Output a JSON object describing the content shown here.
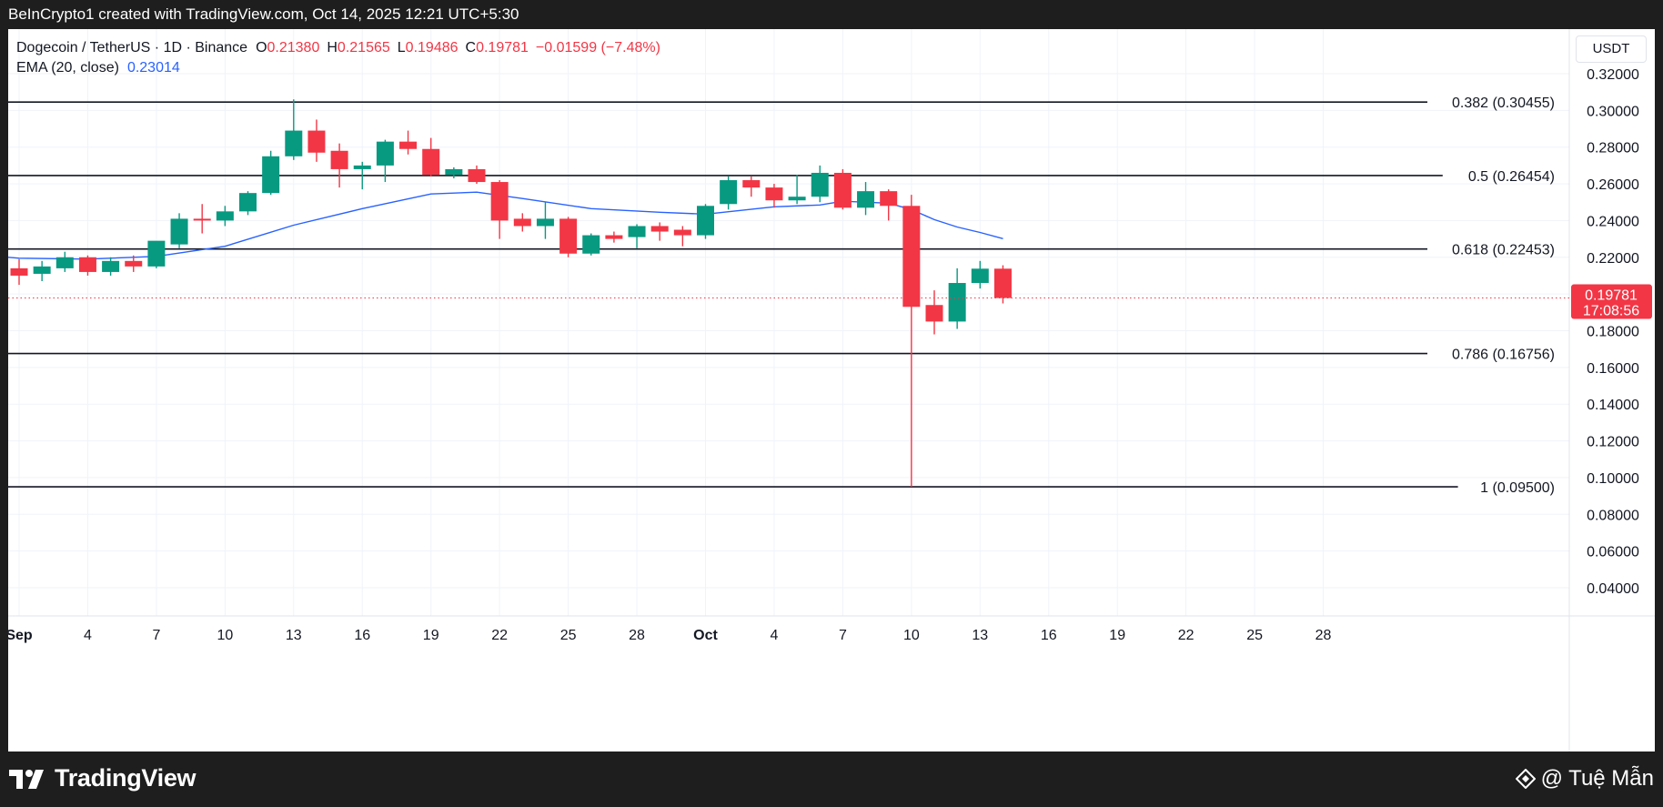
{
  "header": {
    "caption": "BeInCrypto1 created with TradingView.com, Oct 14, 2025 12:21 UTC+5:30"
  },
  "legend": {
    "symbol": "Dogecoin / TetherUS · 1D · Binance",
    "o_label": "O",
    "o_value": "0.21380",
    "h_label": "H",
    "h_value": "0.21565",
    "l_label": "L",
    "l_value": "0.19486",
    "c_label": "C",
    "c_value": "0.19781",
    "change": "−0.01599 (−7.48%)",
    "ema_label": "EMA (20, close)",
    "ema_value": "0.23014"
  },
  "currency_button": "USDT",
  "footer": {
    "brand": "TradingView",
    "credit": "@ Tuệ Mẫn"
  },
  "colors": {
    "up": "#089981",
    "down": "#f23645",
    "ema": "#2962ff",
    "fib_line": "#131722",
    "grid": "#f0f3fa"
  },
  "chart_data": {
    "type": "candlestick",
    "ylim": [
      0.02,
      0.335
    ],
    "y_ticks": [
      "0.32000",
      "0.30000",
      "0.28000",
      "0.26000",
      "0.24000",
      "0.22000",
      "0.18000",
      "0.16000",
      "0.14000",
      "0.12000",
      "0.10000",
      "0.08000",
      "0.06000",
      "0.04000"
    ],
    "x_ticks": [
      "Sep",
      "4",
      "7",
      "10",
      "13",
      "16",
      "19",
      "22",
      "25",
      "28",
      "Oct",
      "4",
      "7",
      "10",
      "13",
      "16",
      "19",
      "22",
      "25",
      "28"
    ],
    "last_price": {
      "value": 0.19781,
      "label": "0.19781",
      "countdown": "17:08:56"
    },
    "fib_levels": [
      {
        "label": "0.382 (0.30455)",
        "value": 0.30455
      },
      {
        "label": "0.5 (0.26454)",
        "value": 0.26454
      },
      {
        "label": "0.618 (0.22453)",
        "value": 0.22453
      },
      {
        "label": "0.786 (0.16756)",
        "value": 0.16756
      },
      {
        "label": "1 (0.09500)",
        "value": 0.095
      }
    ],
    "candles": [
      {
        "date": "Sep 1",
        "o": 0.214,
        "h": 0.219,
        "l": 0.205,
        "c": 0.21
      },
      {
        "date": "Sep 2",
        "o": 0.211,
        "h": 0.218,
        "l": 0.207,
        "c": 0.215
      },
      {
        "date": "Sep 3",
        "o": 0.214,
        "h": 0.223,
        "l": 0.212,
        "c": 0.22
      },
      {
        "date": "Sep 4",
        "o": 0.22,
        "h": 0.221,
        "l": 0.21,
        "c": 0.212
      },
      {
        "date": "Sep 5",
        "o": 0.212,
        "h": 0.22,
        "l": 0.21,
        "c": 0.218
      },
      {
        "date": "Sep 6",
        "o": 0.218,
        "h": 0.221,
        "l": 0.212,
        "c": 0.215
      },
      {
        "date": "Sep 7",
        "o": 0.215,
        "h": 0.228,
        "l": 0.214,
        "c": 0.229
      },
      {
        "date": "Sep 8",
        "o": 0.227,
        "h": 0.244,
        "l": 0.225,
        "c": 0.241
      },
      {
        "date": "Sep 9",
        "o": 0.241,
        "h": 0.249,
        "l": 0.233,
        "c": 0.24
      },
      {
        "date": "Sep 10",
        "o": 0.24,
        "h": 0.248,
        "l": 0.237,
        "c": 0.245
      },
      {
        "date": "Sep 11",
        "o": 0.245,
        "h": 0.256,
        "l": 0.243,
        "c": 0.255
      },
      {
        "date": "Sep 12",
        "o": 0.255,
        "h": 0.278,
        "l": 0.254,
        "c": 0.275
      },
      {
        "date": "Sep 13",
        "o": 0.275,
        "h": 0.306,
        "l": 0.273,
        "c": 0.289
      },
      {
        "date": "Sep 14",
        "o": 0.289,
        "h": 0.295,
        "l": 0.272,
        "c": 0.277
      },
      {
        "date": "Sep 15",
        "o": 0.278,
        "h": 0.282,
        "l": 0.258,
        "c": 0.268
      },
      {
        "date": "Sep 16",
        "o": 0.268,
        "h": 0.272,
        "l": 0.257,
        "c": 0.27
      },
      {
        "date": "Sep 17",
        "o": 0.27,
        "h": 0.284,
        "l": 0.261,
        "c": 0.283
      },
      {
        "date": "Sep 18",
        "o": 0.283,
        "h": 0.289,
        "l": 0.276,
        "c": 0.279
      },
      {
        "date": "Sep 19",
        "o": 0.279,
        "h": 0.285,
        "l": 0.264,
        "c": 0.265
      },
      {
        "date": "Sep 20",
        "o": 0.265,
        "h": 0.269,
        "l": 0.263,
        "c": 0.268
      },
      {
        "date": "Sep 21",
        "o": 0.268,
        "h": 0.27,
        "l": 0.26,
        "c": 0.261
      },
      {
        "date": "Sep 22",
        "o": 0.261,
        "h": 0.262,
        "l": 0.23,
        "c": 0.24
      },
      {
        "date": "Sep 23",
        "o": 0.241,
        "h": 0.244,
        "l": 0.234,
        "c": 0.237
      },
      {
        "date": "Sep 24",
        "o": 0.237,
        "h": 0.25,
        "l": 0.23,
        "c": 0.241
      },
      {
        "date": "Sep 25",
        "o": 0.241,
        "h": 0.242,
        "l": 0.22,
        "c": 0.222
      },
      {
        "date": "Sep 26",
        "o": 0.222,
        "h": 0.233,
        "l": 0.221,
        "c": 0.232
      },
      {
        "date": "Sep 27",
        "o": 0.232,
        "h": 0.234,
        "l": 0.228,
        "c": 0.23
      },
      {
        "date": "Sep 28",
        "o": 0.231,
        "h": 0.238,
        "l": 0.225,
        "c": 0.237
      },
      {
        "date": "Sep 29",
        "o": 0.237,
        "h": 0.239,
        "l": 0.229,
        "c": 0.234
      },
      {
        "date": "Sep 30",
        "o": 0.235,
        "h": 0.237,
        "l": 0.226,
        "c": 0.232
      },
      {
        "date": "Oct 1",
        "o": 0.232,
        "h": 0.249,
        "l": 0.23,
        "c": 0.248
      },
      {
        "date": "Oct 2",
        "o": 0.249,
        "h": 0.264,
        "l": 0.246,
        "c": 0.262
      },
      {
        "date": "Oct 3",
        "o": 0.262,
        "h": 0.264,
        "l": 0.253,
        "c": 0.258
      },
      {
        "date": "Oct 4",
        "o": 0.258,
        "h": 0.26,
        "l": 0.247,
        "c": 0.251
      },
      {
        "date": "Oct 5",
        "o": 0.251,
        "h": 0.265,
        "l": 0.249,
        "c": 0.253
      },
      {
        "date": "Oct 6",
        "o": 0.253,
        "h": 0.27,
        "l": 0.25,
        "c": 0.266
      },
      {
        "date": "Oct 7",
        "o": 0.266,
        "h": 0.268,
        "l": 0.246,
        "c": 0.247
      },
      {
        "date": "Oct 8",
        "o": 0.247,
        "h": 0.261,
        "l": 0.243,
        "c": 0.256
      },
      {
        "date": "Oct 9",
        "o": 0.256,
        "h": 0.257,
        "l": 0.24,
        "c": 0.248
      },
      {
        "date": "Oct 10",
        "o": 0.248,
        "h": 0.254,
        "l": 0.095,
        "c": 0.193
      },
      {
        "date": "Oct 11",
        "o": 0.194,
        "h": 0.202,
        "l": 0.178,
        "c": 0.185
      },
      {
        "date": "Oct 12",
        "o": 0.185,
        "h": 0.214,
        "l": 0.181,
        "c": 0.206
      },
      {
        "date": "Oct 13",
        "o": 0.206,
        "h": 0.218,
        "l": 0.203,
        "c": 0.2138
      },
      {
        "date": "Oct 14",
        "o": 0.2138,
        "h": 0.21565,
        "l": 0.19486,
        "c": 0.19781
      }
    ],
    "ema": [
      {
        "date": "Aug 31",
        "value": 0.22
      },
      {
        "date": "Sep 1",
        "value": 0.2195
      },
      {
        "date": "Sep 4",
        "value": 0.219
      },
      {
        "date": "Sep 7",
        "value": 0.2205
      },
      {
        "date": "Sep 10",
        "value": 0.226
      },
      {
        "date": "Sep 13",
        "value": 0.2375
      },
      {
        "date": "Sep 16",
        "value": 0.2465
      },
      {
        "date": "Sep 19",
        "value": 0.2545
      },
      {
        "date": "Sep 21",
        "value": 0.2555
      },
      {
        "date": "Sep 23",
        "value": 0.252
      },
      {
        "date": "Sep 26",
        "value": 0.2465
      },
      {
        "date": "Sep 29",
        "value": 0.2445
      },
      {
        "date": "Oct 1",
        "value": 0.2435
      },
      {
        "date": "Oct 4",
        "value": 0.2475
      },
      {
        "date": "Oct 6",
        "value": 0.2485
      },
      {
        "date": "Oct 7",
        "value": 0.2505
      },
      {
        "date": "Oct 9",
        "value": 0.2495
      },
      {
        "date": "Oct 10",
        "value": 0.246
      },
      {
        "date": "Oct 11",
        "value": 0.2405
      },
      {
        "date": "Oct 12",
        "value": 0.2365
      },
      {
        "date": "Oct 13",
        "value": 0.2335
      },
      {
        "date": "Oct 14",
        "value": 0.23014
      }
    ]
  }
}
